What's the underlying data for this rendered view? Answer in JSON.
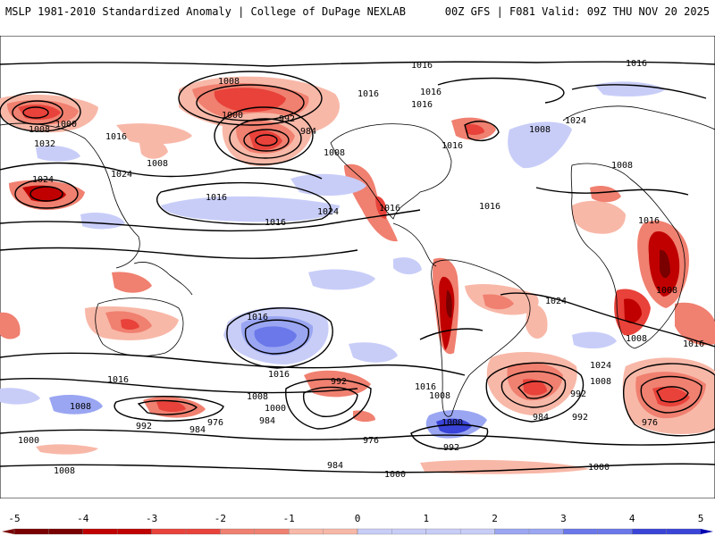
{
  "header": {
    "left": "MSLP 1981-2010 Standardized Anomaly | College of DuPage NEXLAB",
    "right": "00Z GFS | F081 Valid: 09Z THU NOV 20 2025"
  },
  "map": {
    "projection": "global equirectangular",
    "field": "standardized MSLP anomaly",
    "contour_labels": [
      "1016",
      "1016",
      "1016",
      "1016",
      "1008",
      "1000",
      "992",
      "984",
      "1008",
      "1016",
      "1032",
      "1016",
      "1024",
      "1024",
      "1008",
      "1008",
      "1000",
      "1024",
      "1016",
      "1024",
      "1016",
      "1016",
      "1008",
      "1016",
      "1008",
      "1024",
      "1016",
      "1008",
      "1016",
      "1008",
      "1024",
      "1016",
      "1016",
      "1008",
      "1000",
      "992",
      "984",
      "976",
      "1016",
      "1008",
      "1008",
      "992",
      "984",
      "1000",
      "1008",
      "992",
      "976",
      "984",
      "984",
      "1000",
      "992",
      "992",
      "1000",
      "1000",
      "1008",
      "1016",
      "1016",
      "976"
    ],
    "anomaly_centers": [
      {
        "name": "north-pacific-low",
        "value": -3.5
      },
      {
        "name": "gulf-of-alaska-low",
        "value": -3.0
      },
      {
        "name": "east-africa-low",
        "value": -4.0
      },
      {
        "name": "south-america-low",
        "value": -3.5
      },
      {
        "name": "south-pacific-high",
        "value": 3.0
      },
      {
        "name": "drake-passage-high",
        "value": 3.5
      }
    ]
  },
  "colorbar": {
    "min": -5,
    "max": 5,
    "tick_labels": [
      "-5",
      "-4",
      "-3",
      "-2",
      "-1",
      "0",
      "1",
      "2",
      "3",
      "4",
      "5"
    ],
    "colors": {
      "neg5": "#7a0000",
      "neg4": "#c00000",
      "neg3": "#e8423a",
      "neg2": "#f08070",
      "neg1": "#f8b8a8",
      "zero": "#ffffff",
      "pos1": "#c8cdf8",
      "pos2": "#9aa6f2",
      "pos3": "#6a78ea",
      "pos4": "#3a44d8",
      "pos5": "#0000b0"
    }
  }
}
